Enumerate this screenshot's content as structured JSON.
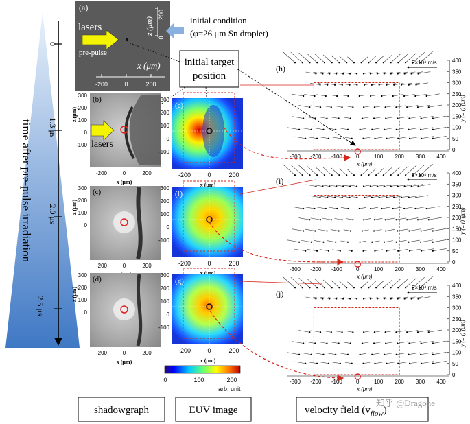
{
  "timeline": {
    "label": "time after pre-pulse irradiation",
    "ticks": [
      "0",
      "1.3 μs",
      "2.0 μs",
      "2.5 μs"
    ]
  },
  "panel_a": {
    "label": "(a)",
    "lasers": "lasers",
    "prepulse": "pre-pulse",
    "x_label": "x (μm)",
    "z_label": "z (μm)",
    "x_ticks": [
      "-200",
      "0",
      "200"
    ],
    "z_ticks": [
      "200",
      "0"
    ]
  },
  "initial_condition": {
    "line1": "initial condition",
    "line2": "(φ=26 μm Sn droplet)"
  },
  "initial_target": {
    "line1": "initial target",
    "line2": "position"
  },
  "shadow": {
    "labels": [
      "(b)",
      "(c)",
      "(d)"
    ],
    "lasers": "lasers",
    "x_label": "x (μm)",
    "z_label": "z (μm)",
    "x_ticks": [
      "-200",
      "0",
      "200"
    ],
    "z_ticks": [
      "300",
      "200",
      "100",
      "0",
      "-100"
    ]
  },
  "euv": {
    "labels": [
      "(e)",
      "(f)",
      "(g)"
    ],
    "x_label": "x (μm)",
    "x_ticks": [
      "-200",
      "0",
      "200"
    ],
    "z_ticks": [
      "300",
      "200",
      "100",
      "0",
      "-100"
    ],
    "colorbar_ticks": [
      "0",
      "100",
      "200"
    ],
    "colorbar_unit": "arb. unit"
  },
  "velocity": {
    "labels": [
      "(h)",
      "(i)",
      "(j)"
    ],
    "scale": "2×10⁴ m/s",
    "x_label": "x (μm)",
    "y_label": "y (= r) (μm)",
    "x_ticks": [
      "-300",
      "-200",
      "-100",
      "0",
      "100",
      "200",
      "300",
      "400"
    ],
    "y_ticks": [
      "400",
      "350",
      "300",
      "250",
      "200",
      "150",
      "100",
      "50",
      "0"
    ]
  },
  "captions": {
    "shadowgraph": "shadowgraph",
    "euv_image": "EUV image",
    "velocity_field": "velocity field (v",
    "velocity_sub": "flow",
    "velocity_close": ")"
  },
  "watermark": "知乎 @Dragone"
}
